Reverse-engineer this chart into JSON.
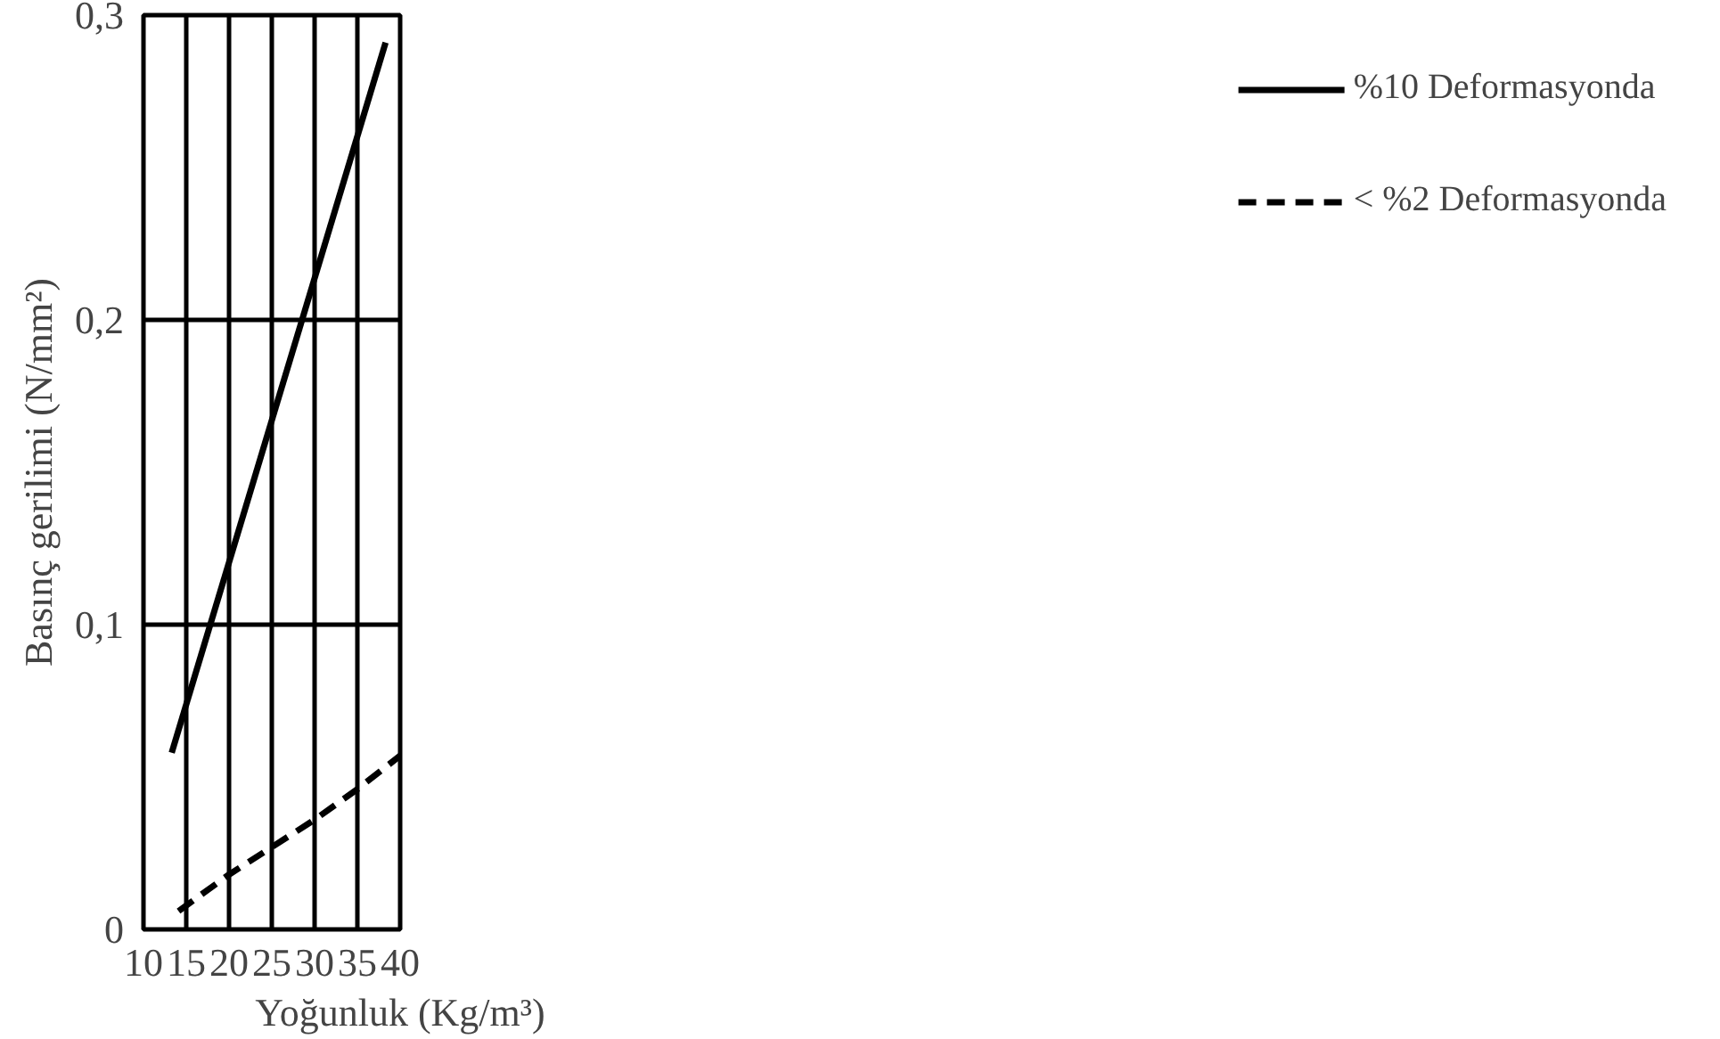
{
  "chart_data": {
    "type": "line",
    "xlabel": "Yoğunluk (Kg/m³)",
    "ylabel": "Basınç gerilimi (N/mm²)",
    "xlim": [
      10,
      40
    ],
    "ylim": [
      0,
      0.3
    ],
    "xticks": [
      10,
      15,
      20,
      25,
      30,
      35,
      40
    ],
    "yticks": [
      {
        "value": 0,
        "label": "0"
      },
      {
        "value": 0.1,
        "label": "0,1"
      },
      {
        "value": 0.2,
        "label": "0,2"
      },
      {
        "value": 0.3,
        "label": "0,3"
      }
    ],
    "grid": true,
    "legend": "right",
    "marker": "none",
    "series": [
      {
        "name": "%10 Deformasyonda",
        "color": "#000000",
        "line_style": "solid",
        "x": [
          13.3,
          38.3
        ],
        "values": [
          0.058,
          0.291
        ]
      },
      {
        "name": "< %2 Deformasyonda",
        "color": "#000000",
        "line_style": "dashed",
        "x": [
          14.1,
          20,
          25,
          30,
          35,
          40
        ],
        "values": [
          0.006,
          0.018,
          0.027,
          0.036,
          0.046,
          0.057
        ]
      }
    ]
  }
}
